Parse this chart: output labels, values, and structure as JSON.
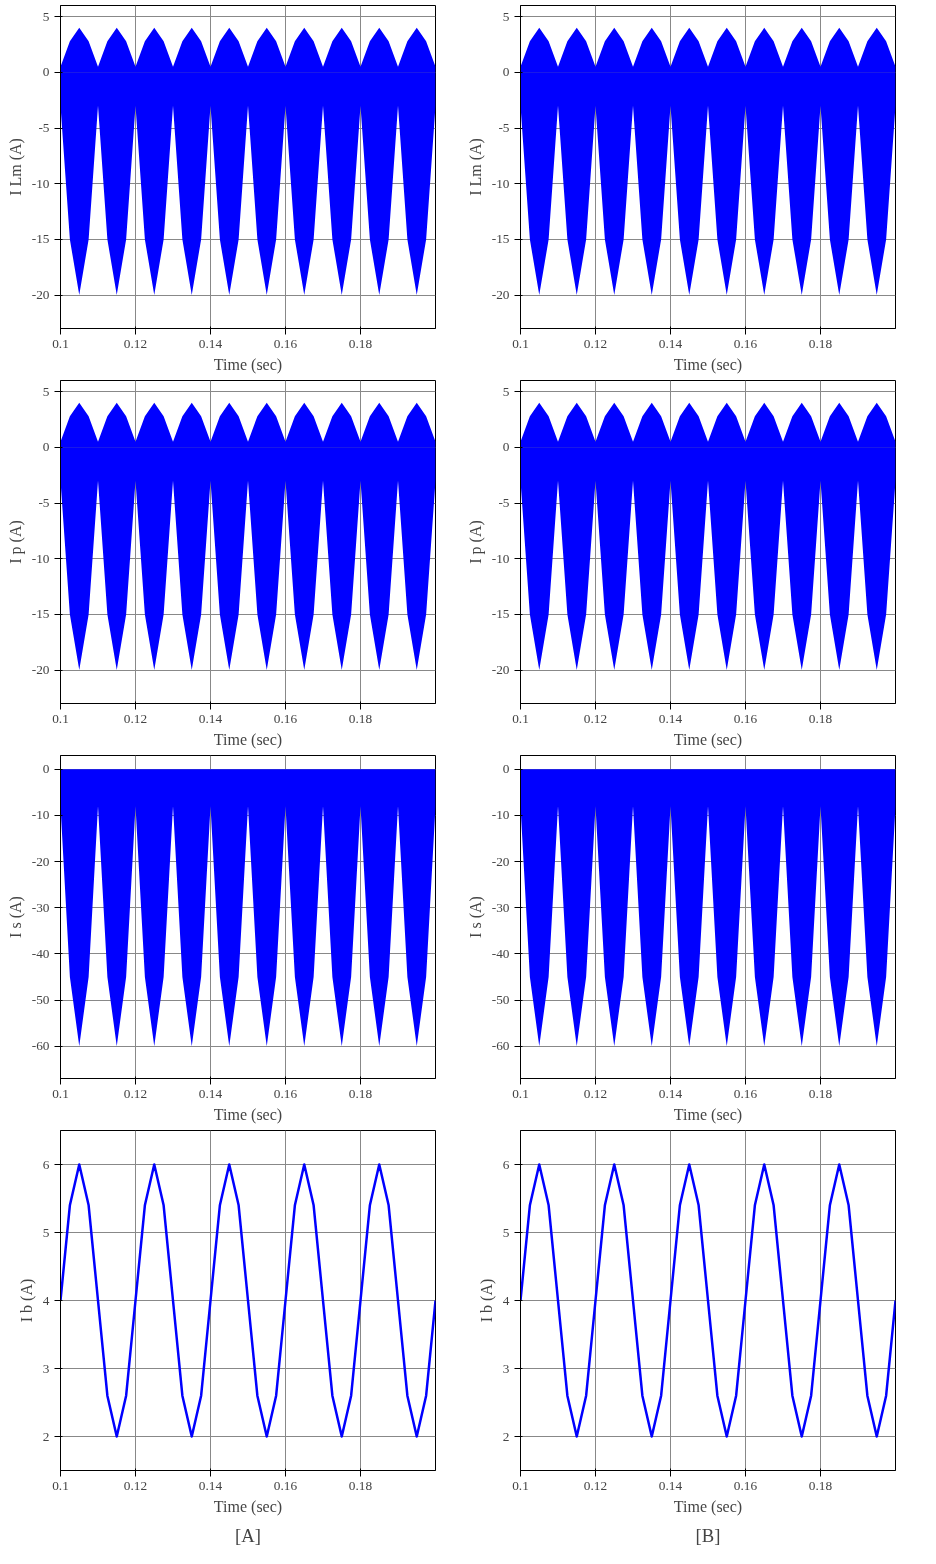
{
  "chart_data": [
    {
      "type": "area",
      "ylabel": "I Lm (A)",
      "xlabel": "Time (sec)",
      "xlim": [
        0.1,
        0.2
      ],
      "xticks": [
        0.1,
        0.12,
        0.14,
        0.16,
        0.18
      ],
      "ylim": [
        -23,
        6
      ],
      "yticks": [
        -20,
        -15,
        -10,
        -5,
        0,
        5
      ],
      "grid": true,
      "x": [
        0.1,
        0.1025,
        0.105,
        0.1075,
        0.11,
        0.1125,
        0.115,
        0.1175,
        0.12,
        0.1225,
        0.125,
        0.1275,
        0.13,
        0.1325,
        0.135,
        0.1375,
        0.14,
        0.1425,
        0.145,
        0.1475,
        0.15,
        0.1525,
        0.155,
        0.1575,
        0.16,
        0.1625,
        0.165,
        0.1675,
        0.17,
        0.1725,
        0.175,
        0.1775,
        0.18,
        0.1825,
        0.185,
        0.1875,
        0.19,
        0.1925,
        0.195,
        0.1975,
        0.2
      ],
      "series": [
        {
          "color": "#0000ff",
          "values": [
            0.5,
            2.8,
            4,
            2.8,
            0.5,
            2.8,
            4,
            2.8,
            0.5,
            2.8,
            4,
            2.8,
            0.5,
            2.8,
            4,
            2.8,
            0.5,
            2.8,
            4,
            2.8,
            0.5,
            2.8,
            4,
            2.8,
            0.5,
            2.8,
            4,
            2.8,
            0.5,
            2.8,
            4,
            2.8,
            0.5,
            2.8,
            4,
            2.8,
            0.5,
            2.8,
            4,
            2.8,
            0.5
          ]
        },
        {
          "color": "#0000ff",
          "values": [
            -3,
            -15,
            -20,
            -15,
            -3,
            -15,
            -20,
            -15,
            -3,
            -15,
            -20,
            -15,
            -3,
            -15,
            -20,
            -15,
            -3,
            -15,
            -20,
            -15,
            -3,
            -15,
            -20,
            -15,
            -3,
            -15,
            -20,
            -15,
            -3,
            -15,
            -20,
            -15,
            -3,
            -15,
            -20,
            -15,
            -3,
            -15,
            -20,
            -15,
            -3
          ]
        }
      ]
    },
    {
      "type": "area",
      "ylabel": "I Lm (A)",
      "xlabel": "Time (sec)",
      "xlim": [
        0.1,
        0.2
      ],
      "xticks": [
        0.1,
        0.12,
        0.14,
        0.16,
        0.18
      ],
      "ylim": [
        -23,
        6
      ],
      "yticks": [
        -20,
        -15,
        -10,
        -5,
        0,
        5
      ],
      "grid": true,
      "x": [
        0.1,
        0.1025,
        0.105,
        0.1075,
        0.11,
        0.1125,
        0.115,
        0.1175,
        0.12,
        0.1225,
        0.125,
        0.1275,
        0.13,
        0.1325,
        0.135,
        0.1375,
        0.14,
        0.1425,
        0.145,
        0.1475,
        0.15,
        0.1525,
        0.155,
        0.1575,
        0.16,
        0.1625,
        0.165,
        0.1675,
        0.17,
        0.1725,
        0.175,
        0.1775,
        0.18,
        0.1825,
        0.185,
        0.1875,
        0.19,
        0.1925,
        0.195,
        0.1975,
        0.2
      ],
      "series": [
        {
          "color": "#0000ff",
          "values": [
            0.5,
            2.8,
            4,
            2.8,
            0.5,
            2.8,
            4,
            2.8,
            0.5,
            2.8,
            4,
            2.8,
            0.5,
            2.8,
            4,
            2.8,
            0.5,
            2.8,
            4,
            2.8,
            0.5,
            2.8,
            4,
            2.8,
            0.5,
            2.8,
            4,
            2.8,
            0.5,
            2.8,
            4,
            2.8,
            0.5,
            2.8,
            4,
            2.8,
            0.5,
            2.8,
            4,
            2.8,
            0.5
          ]
        },
        {
          "color": "#0000ff",
          "values": [
            -3,
            -15,
            -20,
            -15,
            -3,
            -15,
            -20,
            -15,
            -3,
            -15,
            -20,
            -15,
            -3,
            -15,
            -20,
            -15,
            -3,
            -15,
            -20,
            -15,
            -3,
            -15,
            -20,
            -15,
            -3,
            -15,
            -20,
            -15,
            -3,
            -15,
            -20,
            -15,
            -3,
            -15,
            -20,
            -15,
            -3,
            -15,
            -20,
            -15,
            -3
          ]
        }
      ]
    },
    {
      "type": "area",
      "ylabel": "I p (A)",
      "xlabel": "Time (sec)",
      "xlim": [
        0.1,
        0.2
      ],
      "xticks": [
        0.1,
        0.12,
        0.14,
        0.16,
        0.18
      ],
      "ylim": [
        -23,
        6
      ],
      "yticks": [
        -20,
        -15,
        -10,
        -5,
        0,
        5
      ],
      "grid": true,
      "x": [
        0.1,
        0.1025,
        0.105,
        0.1075,
        0.11,
        0.1125,
        0.115,
        0.1175,
        0.12,
        0.1225,
        0.125,
        0.1275,
        0.13,
        0.1325,
        0.135,
        0.1375,
        0.14,
        0.1425,
        0.145,
        0.1475,
        0.15,
        0.1525,
        0.155,
        0.1575,
        0.16,
        0.1625,
        0.165,
        0.1675,
        0.17,
        0.1725,
        0.175,
        0.1775,
        0.18,
        0.1825,
        0.185,
        0.1875,
        0.19,
        0.1925,
        0.195,
        0.1975,
        0.2
      ],
      "series": [
        {
          "color": "#0000ff",
          "values": [
            0.5,
            2.8,
            4,
            2.8,
            0.5,
            2.8,
            4,
            2.8,
            0.5,
            2.8,
            4,
            2.8,
            0.5,
            2.8,
            4,
            2.8,
            0.5,
            2.8,
            4,
            2.8,
            0.5,
            2.8,
            4,
            2.8,
            0.5,
            2.8,
            4,
            2.8,
            0.5,
            2.8,
            4,
            2.8,
            0.5,
            2.8,
            4,
            2.8,
            0.5,
            2.8,
            4,
            2.8,
            0.5
          ]
        },
        {
          "color": "#0000ff",
          "values": [
            -3,
            -15,
            -20,
            -15,
            -3,
            -15,
            -20,
            -15,
            -3,
            -15,
            -20,
            -15,
            -3,
            -15,
            -20,
            -15,
            -3,
            -15,
            -20,
            -15,
            -3,
            -15,
            -20,
            -15,
            -3,
            -15,
            -20,
            -15,
            -3,
            -15,
            -20,
            -15,
            -3,
            -15,
            -20,
            -15,
            -3,
            -15,
            -20,
            -15,
            -3
          ]
        }
      ]
    },
    {
      "type": "area",
      "ylabel": "I p (A)",
      "xlabel": "Time (sec)",
      "xlim": [
        0.1,
        0.2
      ],
      "xticks": [
        0.1,
        0.12,
        0.14,
        0.16,
        0.18
      ],
      "ylim": [
        -23,
        6
      ],
      "yticks": [
        -20,
        -15,
        -10,
        -5,
        0,
        5
      ],
      "grid": true,
      "x": [
        0.1,
        0.1025,
        0.105,
        0.1075,
        0.11,
        0.1125,
        0.115,
        0.1175,
        0.12,
        0.1225,
        0.125,
        0.1275,
        0.13,
        0.1325,
        0.135,
        0.1375,
        0.14,
        0.1425,
        0.145,
        0.1475,
        0.15,
        0.1525,
        0.155,
        0.1575,
        0.16,
        0.1625,
        0.165,
        0.1675,
        0.17,
        0.1725,
        0.175,
        0.1775,
        0.18,
        0.1825,
        0.185,
        0.1875,
        0.19,
        0.1925,
        0.195,
        0.1975,
        0.2
      ],
      "series": [
        {
          "color": "#0000ff",
          "values": [
            0.5,
            2.8,
            4,
            2.8,
            0.5,
            2.8,
            4,
            2.8,
            0.5,
            2.8,
            4,
            2.8,
            0.5,
            2.8,
            4,
            2.8,
            0.5,
            2.8,
            4,
            2.8,
            0.5,
            2.8,
            4,
            2.8,
            0.5,
            2.8,
            4,
            2.8,
            0.5,
            2.8,
            4,
            2.8,
            0.5,
            2.8,
            4,
            2.8,
            0.5,
            2.8,
            4,
            2.8,
            0.5
          ]
        },
        {
          "color": "#0000ff",
          "values": [
            -3,
            -15,
            -20,
            -15,
            -3,
            -15,
            -20,
            -15,
            -3,
            -15,
            -20,
            -15,
            -3,
            -15,
            -20,
            -15,
            -3,
            -15,
            -20,
            -15,
            -3,
            -15,
            -20,
            -15,
            -3,
            -15,
            -20,
            -15,
            -3,
            -15,
            -20,
            -15,
            -3,
            -15,
            -20,
            -15,
            -3,
            -15,
            -20,
            -15,
            -3
          ]
        }
      ]
    },
    {
      "type": "area",
      "ylabel": "I s (A)",
      "xlabel": "Time (sec)",
      "xlim": [
        0.1,
        0.2
      ],
      "xticks": [
        0.1,
        0.12,
        0.14,
        0.16,
        0.18
      ],
      "ylim": [
        -67,
        3
      ],
      "yticks": [
        -60,
        -50,
        -40,
        -30,
        -20,
        -10,
        0
      ],
      "grid": true,
      "x": [
        0.1,
        0.1025,
        0.105,
        0.1075,
        0.11,
        0.1125,
        0.115,
        0.1175,
        0.12,
        0.1225,
        0.125,
        0.1275,
        0.13,
        0.1325,
        0.135,
        0.1375,
        0.14,
        0.1425,
        0.145,
        0.1475,
        0.15,
        0.1525,
        0.155,
        0.1575,
        0.16,
        0.1625,
        0.165,
        0.1675,
        0.17,
        0.1725,
        0.175,
        0.1775,
        0.18,
        0.1825,
        0.185,
        0.1875,
        0.19,
        0.1925,
        0.195,
        0.1975,
        0.2
      ],
      "series": [
        {
          "color": "#0000ff",
          "values": [
            -8,
            -45,
            -60,
            -45,
            -8,
            -45,
            -60,
            -45,
            -8,
            -45,
            -60,
            -45,
            -8,
            -45,
            -60,
            -45,
            -8,
            -45,
            -60,
            -45,
            -8,
            -45,
            -60,
            -45,
            -8,
            -45,
            -60,
            -45,
            -8,
            -45,
            -60,
            -45,
            -8,
            -45,
            -60,
            -45,
            -8,
            -45,
            -60,
            -45,
            -8
          ]
        }
      ]
    },
    {
      "type": "area",
      "ylabel": "I s (A)",
      "xlabel": "Time (sec)",
      "xlim": [
        0.1,
        0.2
      ],
      "xticks": [
        0.1,
        0.12,
        0.14,
        0.16,
        0.18
      ],
      "ylim": [
        -67,
        3
      ],
      "yticks": [
        -60,
        -50,
        -40,
        -30,
        -20,
        -10,
        0
      ],
      "grid": true,
      "x": [
        0.1,
        0.1025,
        0.105,
        0.1075,
        0.11,
        0.1125,
        0.115,
        0.1175,
        0.12,
        0.1225,
        0.125,
        0.1275,
        0.13,
        0.1325,
        0.135,
        0.1375,
        0.14,
        0.1425,
        0.145,
        0.1475,
        0.15,
        0.1525,
        0.155,
        0.1575,
        0.16,
        0.1625,
        0.165,
        0.1675,
        0.17,
        0.1725,
        0.175,
        0.1775,
        0.18,
        0.1825,
        0.185,
        0.1875,
        0.19,
        0.1925,
        0.195,
        0.1975,
        0.2
      ],
      "series": [
        {
          "color": "#0000ff",
          "values": [
            -8,
            -45,
            -60,
            -45,
            -8,
            -45,
            -60,
            -45,
            -8,
            -45,
            -60,
            -45,
            -8,
            -45,
            -60,
            -45,
            -8,
            -45,
            -60,
            -45,
            -8,
            -45,
            -60,
            -45,
            -8,
            -45,
            -60,
            -45,
            -8,
            -45,
            -60,
            -45,
            -8,
            -45,
            -60,
            -45,
            -8,
            -45,
            -60,
            -45,
            -8
          ]
        }
      ]
    },
    {
      "type": "line",
      "ylabel": "I b (A)",
      "xlabel": "Time (sec)",
      "xlim": [
        0.1,
        0.2
      ],
      "xticks": [
        0.1,
        0.12,
        0.14,
        0.16,
        0.18
      ],
      "ylim": [
        1.5,
        6.5
      ],
      "yticks": [
        2,
        3,
        4,
        5,
        6
      ],
      "grid": true,
      "annotations": [
        "[A]"
      ],
      "x": [
        0.1,
        0.1025,
        0.105,
        0.1075,
        0.11,
        0.1125,
        0.115,
        0.1175,
        0.12,
        0.1225,
        0.125,
        0.1275,
        0.13,
        0.1325,
        0.135,
        0.1375,
        0.14,
        0.1425,
        0.145,
        0.1475,
        0.15,
        0.1525,
        0.155,
        0.1575,
        0.16,
        0.1625,
        0.165,
        0.1675,
        0.17,
        0.1725,
        0.175,
        0.1775,
        0.18,
        0.1825,
        0.185,
        0.1875,
        0.19,
        0.1925,
        0.195,
        0.1975,
        0.2
      ],
      "series": [
        {
          "color": "#0000ff",
          "values": [
            4,
            5.4,
            6,
            5.4,
            4,
            2.6,
            2,
            2.6,
            4,
            5.4,
            6,
            5.4,
            4,
            2.6,
            2,
            2.6,
            4,
            5.4,
            6,
            5.4,
            4,
            2.6,
            2,
            2.6,
            4,
            5.4,
            6,
            5.4,
            4,
            2.6,
            2,
            2.6,
            4,
            5.4,
            6,
            5.4,
            4,
            2.6,
            2,
            2.6,
            4
          ]
        }
      ]
    },
    {
      "type": "line",
      "ylabel": "I b (A)",
      "xlabel": "Time (sec)",
      "xlim": [
        0.1,
        0.2
      ],
      "xticks": [
        0.1,
        0.12,
        0.14,
        0.16,
        0.18
      ],
      "ylim": [
        1.5,
        6.5
      ],
      "yticks": [
        2,
        3,
        4,
        5,
        6
      ],
      "grid": true,
      "annotations": [
        "[B]"
      ],
      "x": [
        0.1,
        0.1025,
        0.105,
        0.1075,
        0.11,
        0.1125,
        0.115,
        0.1175,
        0.12,
        0.1225,
        0.125,
        0.1275,
        0.13,
        0.1325,
        0.135,
        0.1375,
        0.14,
        0.1425,
        0.145,
        0.1475,
        0.15,
        0.1525,
        0.155,
        0.1575,
        0.16,
        0.1625,
        0.165,
        0.1675,
        0.17,
        0.1725,
        0.175,
        0.1775,
        0.18,
        0.1825,
        0.185,
        0.1875,
        0.19,
        0.1925,
        0.195,
        0.1975,
        0.2
      ],
      "series": [
        {
          "color": "#0000ff",
          "values": [
            4,
            5.4,
            6,
            5.4,
            4,
            2.6,
            2,
            2.6,
            4,
            5.4,
            6,
            5.4,
            4,
            2.6,
            2,
            2.6,
            4,
            5.4,
            6,
            5.4,
            4,
            2.6,
            2,
            2.6,
            4,
            5.4,
            6,
            5.4,
            4,
            2.6,
            2,
            2.6,
            4,
            5.4,
            6,
            5.4,
            4,
            2.6,
            2,
            2.6,
            4
          ]
        }
      ]
    }
  ]
}
